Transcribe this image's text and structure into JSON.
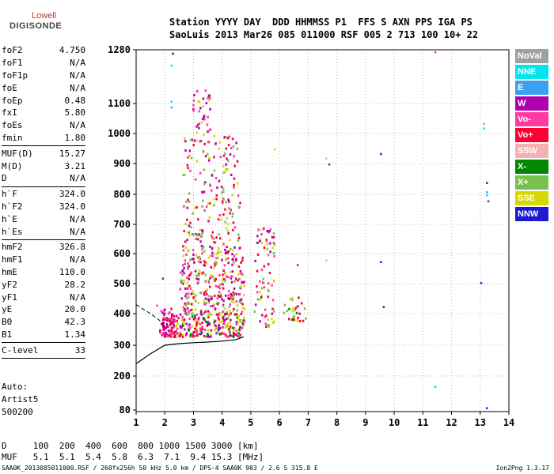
{
  "logo": {
    "line1": "Lowell",
    "line2": "DIGISONDE"
  },
  "header": {
    "line1": "Station YYYY DAY  DDD HHMMSS P1  FFS S AXN PPS IGA PS",
    "line2": "SaoLuis 2013 Mar26 085 011000 RSF 005 2 713 100 10+ 22"
  },
  "params": [
    {
      "name": "foF2",
      "value": "4.750"
    },
    {
      "name": "foF1",
      "value": "N/A"
    },
    {
      "name": "foF1p",
      "value": "N/A"
    },
    {
      "name": "foE",
      "value": "N/A"
    },
    {
      "name": "foEp",
      "value": "0.48"
    },
    {
      "name": "fxI",
      "value": "5.80"
    },
    {
      "name": "foEs",
      "value": "N/A"
    },
    {
      "name": "fmin",
      "value": "1.80"
    },
    {
      "sep": true
    },
    {
      "name": "MUF(D)",
      "value": "15.27"
    },
    {
      "name": "M(D)",
      "value": "3.21"
    },
    {
      "name": "D",
      "value": "N/A"
    },
    {
      "sep": true
    },
    {
      "name": "h`F",
      "value": "324.0"
    },
    {
      "name": "h`F2",
      "value": "324.0"
    },
    {
      "name": "h`E",
      "value": "N/A"
    },
    {
      "name": "h`Es",
      "value": "N/A"
    },
    {
      "sep": true
    },
    {
      "name": "hmF2",
      "value": "326.8"
    },
    {
      "name": "hmF1",
      "value": "N/A"
    },
    {
      "name": "hmE",
      "value": "110.0"
    },
    {
      "name": "yF2",
      "value": "28.2"
    },
    {
      "name": "yF1",
      "value": "N/A"
    },
    {
      "name": "yE",
      "value": "20.0"
    },
    {
      "name": "B0",
      "value": "42.3"
    },
    {
      "name": "B1",
      "value": "1.34"
    },
    {
      "sep": true
    },
    {
      "name": "C-level",
      "value": "33"
    },
    {
      "sep": true
    }
  ],
  "auto": {
    "line1": "Auto:",
    "line2": "Artist5",
    "line3": "500200"
  },
  "legend": [
    {
      "label": "NoVal",
      "color": "#a0a0a0"
    },
    {
      "label": "NNE",
      "color": "#00e5ee"
    },
    {
      "label": "E",
      "color": "#3ca0f0"
    },
    {
      "label": "W",
      "color": "#b000b0"
    },
    {
      "label": "Vo-",
      "color": "#ff3aa0"
    },
    {
      "label": "Vo+",
      "color": "#ff0030"
    },
    {
      "label": "SSW",
      "color": "#f5b0b0"
    },
    {
      "label": "X-",
      "color": "#008800"
    },
    {
      "label": "X+",
      "color": "#78c050"
    },
    {
      "label": "SSE",
      "color": "#d8d800"
    },
    {
      "label": "NNW",
      "color": "#1a1ad0"
    }
  ],
  "bottom": {
    "d_row": "D     100  200  400  600  800 1000 1500 3000 [km]",
    "muf_row": "MUF   5.1  5.1  5.4  5.8  6.3  7.1  9.4 15.3 [MHz]"
  },
  "footer": {
    "left": "SAA0K_2013085011000.RSF / 260fx256h 50 kHz 5.0 km / DPS-4 SAA0K 903 / 2.6 S 315.8 E",
    "right": "Ion2Png 1.3.17"
  },
  "chart_data": {
    "type": "scatter",
    "title": "",
    "xlabel": "",
    "ylabel": "",
    "x_ticks": [
      1,
      2,
      3,
      4,
      5,
      6,
      7,
      8,
      9,
      10,
      11,
      12,
      13,
      14
    ],
    "y_ticks": [
      80,
      200,
      300,
      400,
      500,
      600,
      700,
      800,
      900,
      1000,
      1100,
      1280
    ],
    "xlim": [
      1,
      14
    ],
    "ylim": [
      80,
      1280
    ],
    "y_scale": "nonlinear",
    "profile_curve": [
      [
        1,
        240
      ],
      [
        1.5,
        272
      ],
      [
        2,
        300
      ],
      [
        2.5,
        305
      ],
      [
        3,
        308
      ],
      [
        3.5,
        310
      ],
      [
        4,
        313
      ],
      [
        4.5,
        318
      ],
      [
        4.75,
        326.8
      ]
    ],
    "profile_dashed": [
      [
        1,
        430
      ],
      [
        1.5,
        400
      ],
      [
        1.8,
        380
      ],
      [
        2,
        360
      ]
    ],
    "clusters": [
      {
        "x": [
          1.8,
          2.3
        ],
        "y": [
          330,
          420
        ],
        "colors": [
          "Vo-",
          "Vo+",
          "W"
        ],
        "density": 90
      },
      {
        "x": [
          2.3,
          4.75
        ],
        "y": [
          330,
          400
        ],
        "colors": [
          "Vo+",
          "Vo-",
          "W",
          "X-",
          "SSE"
        ],
        "density": 200
      },
      {
        "x": [
          2.5,
          4.75
        ],
        "y": [
          400,
          600
        ],
        "colors": [
          "W",
          "Vo-",
          "Vo+",
          "SSE",
          "X+"
        ],
        "density": 300
      },
      {
        "x": [
          2.6,
          4.6
        ],
        "y": [
          600,
          1000
        ],
        "colors": [
          "W",
          "Vo-",
          "Vo+",
          "SSE",
          "X+"
        ],
        "density": 220
      },
      {
        "x": [
          2.9,
          3.6
        ],
        "y": [
          1000,
          1150
        ],
        "colors": [
          "W",
          "Vo-",
          "SSE"
        ],
        "density": 40
      },
      {
        "x": [
          5.1,
          5.8
        ],
        "y": [
          360,
          700
        ],
        "colors": [
          "Vo-",
          "Vo+",
          "SSE",
          "X+",
          "W"
        ],
        "density": 80
      },
      {
        "x": [
          6.1,
          6.9
        ],
        "y": [
          380,
          460
        ],
        "colors": [
          "SSE",
          "X+",
          "Vo+",
          "X-"
        ],
        "density": 30
      }
    ],
    "isolated_points": [
      {
        "x": 2.2,
        "y": 1230,
        "c": "NNE"
      },
      {
        "x": 2.2,
        "y": 1110,
        "c": "NNE"
      },
      {
        "x": 2.2,
        "y": 1090,
        "c": "E"
      },
      {
        "x": 2.25,
        "y": 1270,
        "c": "NNW"
      },
      {
        "x": 5.8,
        "y": 950,
        "c": "SSE"
      },
      {
        "x": 7.6,
        "y": 920,
        "c": "SSW"
      },
      {
        "x": 7.7,
        "y": 900,
        "c": "X-"
      },
      {
        "x": 7.6,
        "y": 580,
        "c": "SSW"
      },
      {
        "x": 6.6,
        "y": 565,
        "c": "Vo+"
      },
      {
        "x": 9.5,
        "y": 935,
        "c": "NNW"
      },
      {
        "x": 9.5,
        "y": 575,
        "c": "NNW"
      },
      {
        "x": 9.6,
        "y": 425,
        "c": "NNW"
      },
      {
        "x": 11.4,
        "y": 1275,
        "c": "Vo-"
      },
      {
        "x": 11.4,
        "y": 165,
        "c": "NNE"
      },
      {
        "x": 13.1,
        "y": 1035,
        "c": "X+"
      },
      {
        "x": 13.1,
        "y": 1020,
        "c": "NNE"
      },
      {
        "x": 13.2,
        "y": 840,
        "c": "NNW"
      },
      {
        "x": 13.2,
        "y": 810,
        "c": "E"
      },
      {
        "x": 13.2,
        "y": 800,
        "c": "NNE"
      },
      {
        "x": 13.25,
        "y": 780,
        "c": "W"
      },
      {
        "x": 13.0,
        "y": 505,
        "c": "NNW"
      },
      {
        "x": 13.2,
        "y": 90,
        "c": "NNW"
      },
      {
        "x": 1.9,
        "y": 520,
        "c": "W"
      },
      {
        "x": 1.7,
        "y": 430,
        "c": "Vo-"
      }
    ]
  }
}
